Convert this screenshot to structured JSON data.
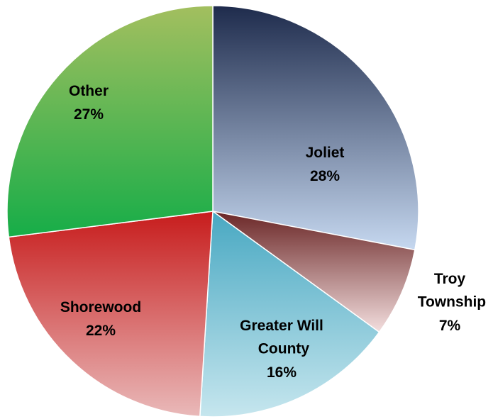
{
  "chart_data": {
    "type": "pie",
    "categories": [
      "Joliet",
      "Troy Township",
      "Greater Will County",
      "Shorewood",
      "Other"
    ],
    "values": [
      28,
      7,
      16,
      22,
      27
    ],
    "value_labels": [
      "28%",
      "7%",
      "16%",
      "22%",
      "27%"
    ],
    "gradients": [
      [
        "#1e2b4c",
        "#c6d8f0"
      ],
      [
        "#6a2626",
        "#f3dede"
      ],
      [
        "#48a8c2",
        "#c6e6ee"
      ],
      [
        "#c71c1c",
        "#e9b9b9"
      ],
      [
        "#a3bf5f",
        "#16ad48"
      ]
    ]
  }
}
